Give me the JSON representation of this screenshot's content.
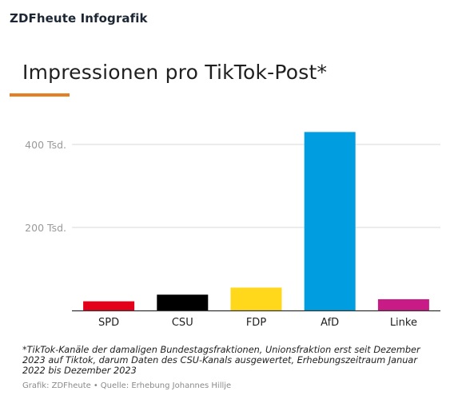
{
  "header": {
    "brand": "ZDFheute Infografik"
  },
  "footnote": "*TikTok-Kanäle der damaligen Bundestagsfraktionen, Unionsfraktion erst seit Dezember 2023 auf Tiktok, darum Daten des CSU-Kanals ausgewertet, Erhebungszeitraum Januar 2022 bis Dezember 2023",
  "source": {
    "left": "Grafik: ZDFheute",
    "separator": "•",
    "right": "Quelle: Erhebung Johannes Hillje"
  },
  "colors": {
    "accent": "#e67e22",
    "grid": "#d9d9d9",
    "axis": "#333333",
    "tick_label": "#9a9a9a"
  },
  "chart_data": {
    "type": "bar",
    "title": "Impressionen pro TikTok-Post*",
    "categories": [
      "SPD",
      "CSU",
      "FDP",
      "AfD",
      "Linke"
    ],
    "values": [
      22000,
      38000,
      55000,
      430000,
      27000
    ],
    "bar_colors": [
      "#e3001b",
      "#000000",
      "#ffd81b",
      "#009ee0",
      "#c91b86"
    ],
    "ylim": [
      0,
      500000
    ],
    "yticks": [
      {
        "value": 200000,
        "label": "200 Tsd."
      },
      {
        "value": 400000,
        "label": "400 Tsd."
      }
    ],
    "xlabel": "",
    "ylabel": "",
    "grid": true,
    "legend": "none"
  }
}
